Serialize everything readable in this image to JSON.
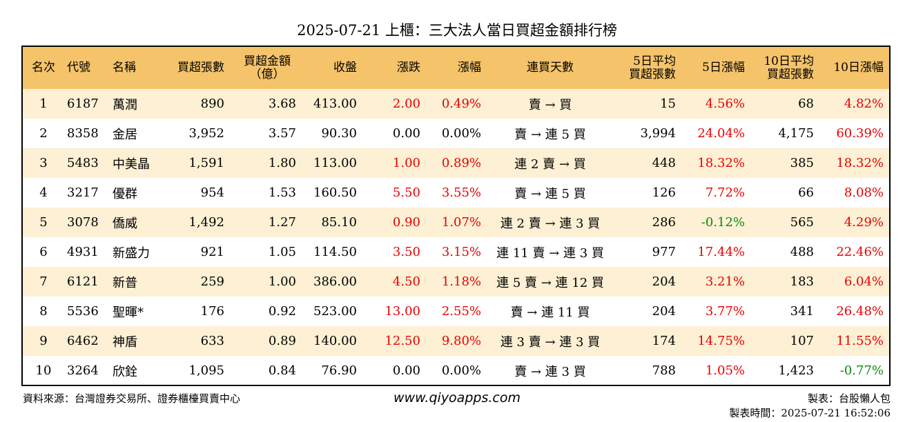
{
  "title": "2025-07-21 上櫃：三大法人當日買超金額排行榜",
  "headers": {
    "rank": "名次",
    "code": "代號",
    "name": "名稱",
    "buy_lots": "買超張數",
    "buy_amount_l1": "買超金額",
    "buy_amount_l2": "（億）",
    "close": "收盤",
    "change": "漲跌",
    "pct": "漲幅",
    "streak": "連買天數",
    "avg5_l1": "5日平均",
    "avg5_l2": "買超張數",
    "pct5": "5日漲幅",
    "avg10_l1": "10日平均",
    "avg10_l2": "買超張數",
    "pct10": "10日漲幅"
  },
  "rows": [
    {
      "rank": "1",
      "code": "6187",
      "name": "萬潤",
      "lots": "890",
      "amount": "3.68",
      "close": "413.00",
      "change": "2.00",
      "pct": "0.49%",
      "streak": "賣 → 買",
      "avg5": "15",
      "pct5": "4.56%",
      "avg10": "68",
      "pct10": "4.82%"
    },
    {
      "rank": "2",
      "code": "8358",
      "name": "金居",
      "lots": "3,952",
      "amount": "3.57",
      "close": "90.30",
      "change": "0.00",
      "pct": "0.00%",
      "streak": "賣 → 連 5 買",
      "avg5": "3,994",
      "pct5": "24.04%",
      "avg10": "4,175",
      "pct10": "60.39%"
    },
    {
      "rank": "3",
      "code": "5483",
      "name": "中美晶",
      "lots": "1,591",
      "amount": "1.80",
      "close": "113.00",
      "change": "1.00",
      "pct": "0.89%",
      "streak": "連 2 賣 → 買",
      "avg5": "448",
      "pct5": "18.32%",
      "avg10": "385",
      "pct10": "18.32%"
    },
    {
      "rank": "4",
      "code": "3217",
      "name": "優群",
      "lots": "954",
      "amount": "1.53",
      "close": "160.50",
      "change": "5.50",
      "pct": "3.55%",
      "streak": "賣 → 連 5 買",
      "avg5": "126",
      "pct5": "7.72%",
      "avg10": "66",
      "pct10": "8.08%"
    },
    {
      "rank": "5",
      "code": "3078",
      "name": "僑威",
      "lots": "1,492",
      "amount": "1.27",
      "close": "85.10",
      "change": "0.90",
      "pct": "1.07%",
      "streak": "連 2 賣 → 連 3 買",
      "avg5": "286",
      "pct5": "-0.12%",
      "avg10": "565",
      "pct10": "4.29%"
    },
    {
      "rank": "6",
      "code": "4931",
      "name": "新盛力",
      "lots": "921",
      "amount": "1.05",
      "close": "114.50",
      "change": "3.50",
      "pct": "3.15%",
      "streak": "連 11 賣 → 連 3 買",
      "avg5": "977",
      "pct5": "17.44%",
      "avg10": "488",
      "pct10": "22.46%"
    },
    {
      "rank": "7",
      "code": "6121",
      "name": "新普",
      "lots": "259",
      "amount": "1.00",
      "close": "386.00",
      "change": "4.50",
      "pct": "1.18%",
      "streak": "連 5 賣 → 連 12 買",
      "avg5": "204",
      "pct5": "3.21%",
      "avg10": "183",
      "pct10": "6.04%"
    },
    {
      "rank": "8",
      "code": "5536",
      "name": "聖暉*",
      "lots": "176",
      "amount": "0.92",
      "close": "523.00",
      "change": "13.00",
      "pct": "2.55%",
      "streak": "賣 → 連 11 買",
      "avg5": "204",
      "pct5": "3.77%",
      "avg10": "341",
      "pct10": "26.48%"
    },
    {
      "rank": "9",
      "code": "6462",
      "name": "神盾",
      "lots": "633",
      "amount": "0.89",
      "close": "140.00",
      "change": "12.50",
      "pct": "9.80%",
      "streak": "連 3 賣 → 連 3 買",
      "avg5": "174",
      "pct5": "14.75%",
      "avg10": "107",
      "pct10": "11.55%"
    },
    {
      "rank": "10",
      "code": "3264",
      "name": "欣銓",
      "lots": "1,095",
      "amount": "0.84",
      "close": "76.90",
      "change": "0.00",
      "pct": "0.00%",
      "streak": "賣 → 連 3 買",
      "avg5": "788",
      "pct5": "1.05%",
      "avg10": "1,423",
      "pct10": "-0.77%"
    }
  ],
  "footer": {
    "source": "資料來源：台灣證券交易所、證券櫃檯買賣中心",
    "website": "www.qiyoapps.com",
    "author": "製表：台股懶人包",
    "time": "製表時間：2025-07-21 16:52:06"
  },
  "colors": {
    "header_bg": "#f5c36a",
    "stripe_bg": "#fdf0d4",
    "up": "#e60000",
    "down": "#0a8a0a"
  }
}
